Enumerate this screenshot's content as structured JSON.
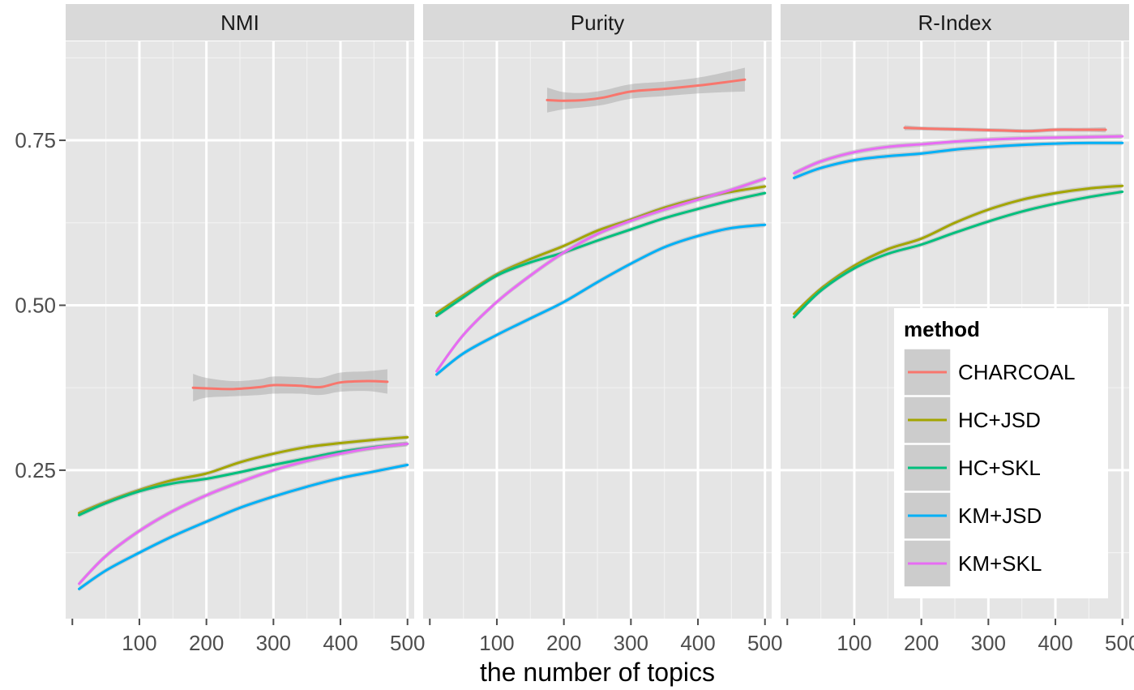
{
  "chart_data": {
    "type": "line",
    "xlabel": "the number of topics",
    "ylabel": "",
    "xlim": [
      -10,
      510
    ],
    "ylim": [
      0.025,
      0.9
    ],
    "x_ticks": [
      100,
      200,
      300,
      400,
      500
    ],
    "y_ticks": [
      0.25,
      0.5,
      0.75
    ],
    "x_tick_labels": [
      "100",
      "200",
      "300",
      "400",
      "500"
    ],
    "y_tick_labels": [
      "0.25",
      "0.50",
      "0.75"
    ],
    "grid": true,
    "legend": {
      "title": "method",
      "placement": "inside-bottom-right",
      "entries": [
        "CHARCOAL",
        "HC+JSD",
        "HC+SKL",
        "KM+JSD",
        "KM+SKL"
      ]
    },
    "series_colors": {
      "CHARCOAL": "#F8766D",
      "HC+JSD": "#A3A500",
      "HC+SKL": "#00BF7D",
      "KM+JSD": "#00B0F6",
      "KM+SKL": "#E76BF3"
    },
    "panels": [
      {
        "title": "NMI",
        "series": [
          {
            "name": "CHARCOAL",
            "band": true,
            "x": [
              180,
              200,
              240,
              280,
              300,
              340,
              370,
              400,
              440,
              470
            ],
            "y": [
              0.375,
              0.374,
              0.373,
              0.376,
              0.379,
              0.378,
              0.376,
              0.383,
              0.385,
              0.384
            ],
            "ymin": [
              0.354,
              0.36,
              0.362,
              0.364,
              0.366,
              0.366,
              0.364,
              0.369,
              0.37,
              0.366
            ],
            "ymax": [
              0.396,
              0.39,
              0.385,
              0.388,
              0.392,
              0.391,
              0.39,
              0.398,
              0.4,
              0.403
            ]
          },
          {
            "name": "HC+JSD",
            "x": [
              10,
              50,
              100,
              150,
              200,
              250,
              300,
              350,
              400,
              450,
              500
            ],
            "y": [
              0.185,
              0.202,
              0.22,
              0.235,
              0.245,
              0.262,
              0.275,
              0.285,
              0.291,
              0.296,
              0.3
            ]
          },
          {
            "name": "HC+SKL",
            "x": [
              10,
              50,
              100,
              150,
              200,
              250,
              300,
              350,
              400,
              450,
              500
            ],
            "y": [
              0.182,
              0.2,
              0.218,
              0.23,
              0.237,
              0.247,
              0.258,
              0.268,
              0.278,
              0.285,
              0.29
            ]
          },
          {
            "name": "KM+JSD",
            "x": [
              10,
              50,
              100,
              150,
              200,
              250,
              300,
              350,
              400,
              450,
              500
            ],
            "y": [
              0.07,
              0.098,
              0.125,
              0.15,
              0.172,
              0.193,
              0.21,
              0.225,
              0.238,
              0.248,
              0.258
            ]
          },
          {
            "name": "KM+SKL",
            "x": [
              10,
              50,
              100,
              150,
              200,
              250,
              300,
              350,
              400,
              450,
              500
            ],
            "y": [
              0.078,
              0.12,
              0.158,
              0.188,
              0.212,
              0.232,
              0.25,
              0.264,
              0.275,
              0.284,
              0.29
            ]
          }
        ]
      },
      {
        "title": "Purity",
        "series": [
          {
            "name": "CHARCOAL",
            "band": true,
            "x": [
              175,
              200,
              230,
              260,
              300,
              350,
              400,
              440,
              470
            ],
            "y": [
              0.811,
              0.81,
              0.811,
              0.815,
              0.824,
              0.828,
              0.833,
              0.838,
              0.842
            ],
            "ymin": [
              0.792,
              0.797,
              0.8,
              0.804,
              0.813,
              0.817,
              0.821,
              0.823,
              0.824
            ],
            "ymax": [
              0.83,
              0.823,
              0.822,
              0.826,
              0.835,
              0.839,
              0.845,
              0.853,
              0.86
            ]
          },
          {
            "name": "HC+JSD",
            "x": [
              10,
              50,
              100,
              150,
              200,
              250,
              300,
              350,
              400,
              450,
              500
            ],
            "y": [
              0.488,
              0.515,
              0.547,
              0.57,
              0.59,
              0.613,
              0.63,
              0.648,
              0.662,
              0.672,
              0.68
            ]
          },
          {
            "name": "HC+SKL",
            "x": [
              10,
              50,
              100,
              150,
              200,
              250,
              300,
              350,
              400,
              450,
              500
            ],
            "y": [
              0.484,
              0.512,
              0.545,
              0.565,
              0.58,
              0.598,
              0.615,
              0.632,
              0.646,
              0.659,
              0.67
            ]
          },
          {
            "name": "KM+JSD",
            "x": [
              10,
              50,
              100,
              150,
              200,
              250,
              300,
              350,
              400,
              450,
              500
            ],
            "y": [
              0.395,
              0.427,
              0.455,
              0.48,
              0.505,
              0.535,
              0.563,
              0.588,
              0.605,
              0.617,
              0.622
            ]
          },
          {
            "name": "KM+SKL",
            "x": [
              10,
              50,
              100,
              150,
              200,
              250,
              300,
              350,
              400,
              450,
              500
            ],
            "y": [
              0.4,
              0.455,
              0.505,
              0.545,
              0.58,
              0.608,
              0.628,
              0.645,
              0.66,
              0.675,
              0.692
            ]
          }
        ]
      },
      {
        "title": "R-Index",
        "series": [
          {
            "name": "CHARCOAL",
            "band": true,
            "x": [
              175,
              200,
              240,
              280,
              320,
              360,
              400,
              440,
              475
            ],
            "y": [
              0.769,
              0.768,
              0.767,
              0.766,
              0.765,
              0.764,
              0.766,
              0.766,
              0.766
            ],
            "ymin": [
              0.765,
              0.765,
              0.764,
              0.763,
              0.762,
              0.761,
              0.763,
              0.763,
              0.762
            ],
            "ymax": [
              0.773,
              0.771,
              0.77,
              0.769,
              0.768,
              0.767,
              0.769,
              0.769,
              0.77
            ]
          },
          {
            "name": "HC+JSD",
            "x": [
              10,
              50,
              100,
              150,
              200,
              250,
              300,
              350,
              400,
              450,
              500
            ],
            "y": [
              0.487,
              0.525,
              0.56,
              0.585,
              0.601,
              0.625,
              0.645,
              0.66,
              0.67,
              0.677,
              0.681
            ]
          },
          {
            "name": "HC+SKL",
            "x": [
              10,
              50,
              100,
              150,
              200,
              250,
              300,
              350,
              400,
              450,
              500
            ],
            "y": [
              0.482,
              0.522,
              0.556,
              0.578,
              0.592,
              0.61,
              0.627,
              0.642,
              0.654,
              0.664,
              0.672
            ]
          },
          {
            "name": "KM+JSD",
            "x": [
              10,
              50,
              100,
              150,
              200,
              250,
              300,
              350,
              400,
              450,
              500
            ],
            "y": [
              0.693,
              0.708,
              0.72,
              0.726,
              0.73,
              0.736,
              0.74,
              0.743,
              0.745,
              0.746,
              0.746
            ]
          },
          {
            "name": "KM+SKL",
            "x": [
              10,
              50,
              100,
              150,
              200,
              250,
              300,
              350,
              400,
              450,
              500
            ],
            "y": [
              0.7,
              0.718,
              0.732,
              0.74,
              0.744,
              0.748,
              0.751,
              0.753,
              0.754,
              0.755,
              0.756
            ]
          }
        ]
      }
    ]
  }
}
